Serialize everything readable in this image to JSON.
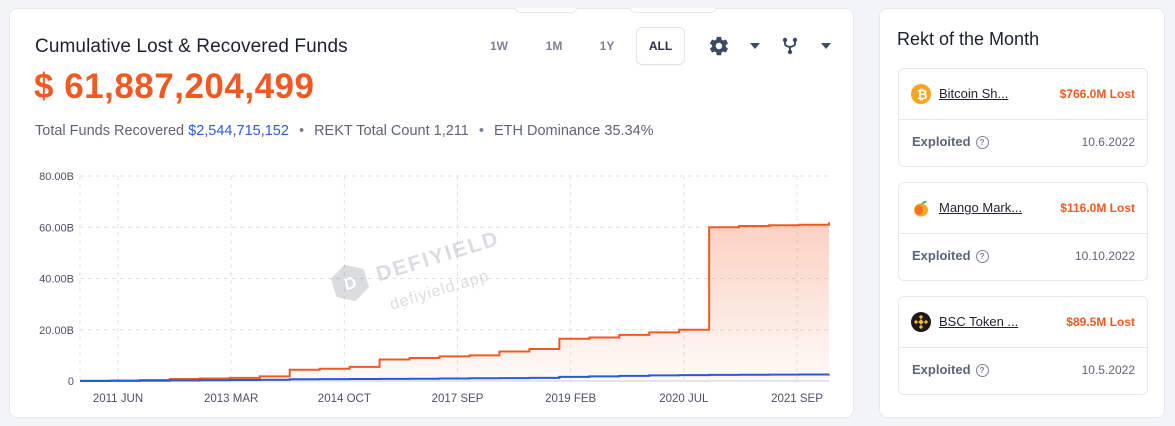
{
  "main": {
    "title": "Cumulative Lost & Recovered Funds",
    "total_lost": "$ 61,887,204,499",
    "stats": {
      "recovered_label": "Total Funds Recovered",
      "recovered_value": "$2,544,715,152",
      "rekt_count": "REKT Total Count 1,211",
      "eth_dominance": "ETH Dominance 35.34%"
    },
    "ranges": [
      "1W",
      "1M",
      "1Y",
      "ALL"
    ],
    "active_range": "ALL",
    "icons": [
      "gear-icon",
      "caret-down-icon",
      "fork-icon",
      "caret-down-icon"
    ],
    "watermark": {
      "brand": "DEFIYIELD",
      "url": "defiyield.app"
    }
  },
  "chart_data": {
    "type": "area",
    "x_tick_labels": [
      "2011 JUN",
      "2013 MAR",
      "2014 OCT",
      "2017 SEP",
      "2019 FEB",
      "2020 JUL",
      "2021 SEP"
    ],
    "y_tick_labels": [
      "0",
      "20.00B",
      "40.00B",
      "60.00B",
      "80.00B"
    ],
    "ylim": [
      0,
      80
    ],
    "y_unit": "B",
    "grid": true,
    "x": [
      "2011 JUN",
      "2012 APR",
      "2013 MAR",
      "2013 DEC",
      "2014 OCT",
      "2016 MAR",
      "2017 JUN",
      "2017 SEP",
      "2018 JUN",
      "2019 FEB",
      "2019 JUN",
      "2019 DEC",
      "2020 JUL",
      "2020 SEP",
      "2020 NOV",
      "2021 JAN",
      "2021 FEB",
      "2021 MAY",
      "2021 SEP",
      "2021 DEC",
      "2022 JAN",
      "2022 MAR",
      "2022 APR",
      "2022 JUN",
      "2022 AUG",
      "2022 OCT"
    ],
    "series": [
      {
        "color": "#f05a22",
        "values": [
          0.1,
          0.2,
          0.4,
          0.8,
          1.0,
          1.2,
          1.8,
          4.4,
          4.8,
          5.5,
          8.4,
          9.0,
          9.6,
          10.0,
          11.5,
          12.5,
          16.5,
          17.0,
          18.0,
          19.0,
          20.0,
          60.0,
          60.5,
          60.8,
          61.0,
          61.9
        ]
      },
      {
        "color": "#2a5bd7",
        "values": [
          0.0,
          0.05,
          0.1,
          0.2,
          0.3,
          0.4,
          0.5,
          0.7,
          0.75,
          0.8,
          0.85,
          0.9,
          1.0,
          1.05,
          1.1,
          1.2,
          1.6,
          1.8,
          2.0,
          2.2,
          2.3,
          2.4,
          2.45,
          2.5,
          2.52,
          2.54
        ]
      }
    ]
  },
  "side": {
    "title": "Rekt of the Month",
    "items": [
      {
        "name": "Bitcoin Sh...",
        "lost": "$766.0M Lost",
        "status": "Exploited",
        "date": "10.6.2022",
        "icon": "bitcoin-icon",
        "icon_color": "#f5a623"
      },
      {
        "name": "Mango Mark...",
        "lost": "$116.0M Lost",
        "status": "Exploited",
        "date": "10.10.2022",
        "icon": "mango-icon",
        "icon_color": "#f7a823"
      },
      {
        "name": "BSC Token ...",
        "lost": "$89.5M Lost",
        "status": "Exploited",
        "date": "10.5.2022",
        "icon": "bnb-icon",
        "icon_color": "#1a1a1a"
      }
    ]
  }
}
